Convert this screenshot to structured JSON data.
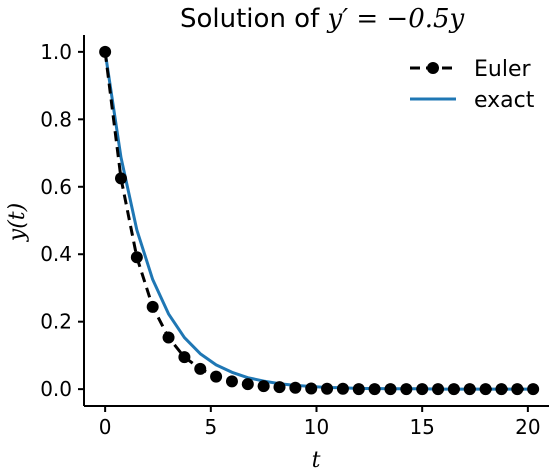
{
  "chart_data": {
    "type": "line",
    "title_prefix": "Solution of ",
    "title_math": "y′ = −0.5y",
    "xlabel": "t",
    "ylabel": "y(t)",
    "xlim": [
      -1,
      21
    ],
    "ylim": [
      -0.05,
      1.05
    ],
    "xticks": [
      0,
      5,
      10,
      15,
      20
    ],
    "yticks": [
      0.0,
      0.2,
      0.4,
      0.6,
      0.8,
      1.0
    ],
    "xtick_labels": [
      "0",
      "5",
      "10",
      "15",
      "20"
    ],
    "ytick_labels": [
      "0.0",
      "0.2",
      "0.4",
      "0.6",
      "0.8",
      "1.0"
    ],
    "grid": false,
    "legend_position": "top-right",
    "series": [
      {
        "name": "Euler",
        "style": "dashed-with-markers",
        "color": "#000000",
        "x": [
          0,
          0.75,
          1.5,
          2.25,
          3.0,
          3.75,
          4.5,
          5.25,
          6.0,
          6.75,
          7.5,
          8.25,
          9.0,
          9.75,
          10.5,
          11.25,
          12.0,
          12.75,
          13.5,
          14.25,
          15.0,
          15.75,
          16.5,
          17.25,
          18.0,
          18.75,
          19.5,
          20.25
        ],
        "y": [
          1.0,
          0.625,
          0.391,
          0.244,
          0.153,
          0.095,
          0.06,
          0.037,
          0.023,
          0.015,
          0.009,
          0.006,
          0.004,
          0.002,
          0.001,
          0.001,
          0.0,
          0.0,
          0.0,
          0.0,
          0.0,
          0.0,
          0.0,
          0.0,
          0.0,
          0.0,
          0.0,
          0.0
        ]
      },
      {
        "name": "exact",
        "style": "solid",
        "color": "#1f77b4",
        "x": [
          0,
          0.75,
          1.5,
          2.25,
          3.0,
          3.75,
          4.5,
          5.25,
          6.0,
          6.75,
          7.5,
          8.25,
          9.0,
          9.75,
          10.5,
          11.25,
          12.0,
          12.75,
          13.5,
          14.25,
          15.0,
          15.75,
          16.5,
          17.25,
          18.0,
          18.75,
          19.5,
          20.25
        ],
        "y": [
          1.0,
          0.687,
          0.472,
          0.325,
          0.223,
          0.153,
          0.105,
          0.072,
          0.05,
          0.034,
          0.024,
          0.016,
          0.011,
          0.008,
          0.005,
          0.004,
          0.002,
          0.002,
          0.001,
          0.001,
          0.001,
          0.0,
          0.0,
          0.0,
          0.0,
          0.0,
          0.0,
          0.0
        ]
      }
    ]
  }
}
